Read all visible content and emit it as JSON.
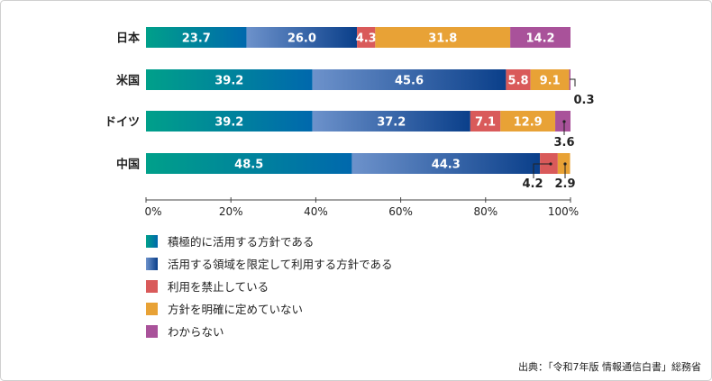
{
  "chart_data": {
    "type": "bar",
    "orientation": "horizontal",
    "stacked": true,
    "categories": [
      "日本",
      "米国",
      "ドイツ",
      "中国"
    ],
    "series": [
      {
        "name": "積極的に活用する方針である",
        "values": [
          23.7,
          39.2,
          39.2,
          48.5
        ],
        "color": "#00a08a",
        "color_end": "#0068ad"
      },
      {
        "name": "活用する領域を限定して利用する方針である",
        "values": [
          26.0,
          45.6,
          37.2,
          44.3
        ],
        "color": "#6d92cb",
        "color_end": "#0a3f8a"
      },
      {
        "name": "利用を禁止している",
        "values": [
          4.3,
          5.8,
          7.1,
          4.2
        ],
        "color": "#d95a5a"
      },
      {
        "name": "方針を明確に定めていない",
        "values": [
          31.8,
          9.1,
          12.9,
          2.9
        ],
        "color": "#e8a236"
      },
      {
        "name": "わからない",
        "values": [
          14.2,
          0.3,
          3.6,
          0
        ],
        "color": "#a9529a"
      }
    ],
    "outside_labels": [
      {
        "category": 1,
        "series": 4,
        "text": "0.3"
      },
      {
        "category": 2,
        "series": 4,
        "text": "3.6"
      },
      {
        "category": 3,
        "series": 2,
        "text": "4.2"
      },
      {
        "category": 3,
        "series": 3,
        "text": "2.9"
      }
    ],
    "xlim": [
      0,
      100
    ],
    "xticks": [
      "0%",
      "20%",
      "40%",
      "60%",
      "80%",
      "100%"
    ],
    "legend_position": "bottom-left",
    "grid": false
  },
  "source": "出典：「令和7年版 情報通信白書」総務省"
}
